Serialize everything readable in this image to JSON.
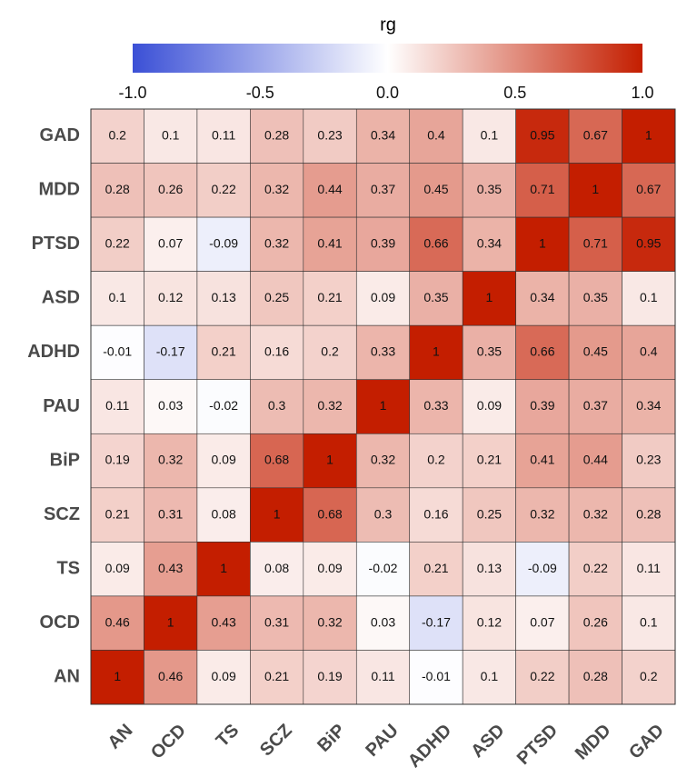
{
  "chart_data": {
    "type": "heatmap",
    "colorbar_title": "rg",
    "clim": [
      -1,
      1
    ],
    "colormap": [
      "#3b50d6",
      "#ffffff",
      "#c41e00"
    ],
    "cticks": [
      {
        "value": -1,
        "label": "-1.0"
      },
      -0.5,
      {
        "value": 0,
        "label": "0.0"
      },
      0.5,
      {
        "value": 1,
        "label": "1.0"
      }
    ],
    "x_categories": [
      "AN",
      "OCD",
      "TS",
      "SCZ",
      "BiP",
      "PAU",
      "ADHD",
      "ASD",
      "PTSD",
      "MDD",
      "GAD"
    ],
    "y_categories": [
      "GAD",
      "MDD",
      "PTSD",
      "ASD",
      "ADHD",
      "PAU",
      "BiP",
      "SCZ",
      "TS",
      "OCD",
      "AN"
    ],
    "values": [
      [
        0.2,
        0.1,
        0.11,
        0.28,
        0.23,
        0.34,
        0.4,
        0.1,
        0.95,
        0.67,
        1
      ],
      [
        0.28,
        0.26,
        0.22,
        0.32,
        0.44,
        0.37,
        0.45,
        0.35,
        0.71,
        1,
        0.67
      ],
      [
        0.22,
        0.07,
        -0.09,
        0.32,
        0.41,
        0.39,
        0.66,
        0.34,
        1,
        0.71,
        0.95
      ],
      [
        0.1,
        0.12,
        0.13,
        0.25,
        0.21,
        0.09,
        0.35,
        1,
        0.34,
        0.35,
        0.1
      ],
      [
        -0.01,
        -0.17,
        0.21,
        0.16,
        0.2,
        0.33,
        1,
        0.35,
        0.66,
        0.45,
        0.4
      ],
      [
        0.11,
        0.03,
        -0.02,
        0.3,
        0.32,
        1,
        0.33,
        0.09,
        0.39,
        0.37,
        0.34
      ],
      [
        0.19,
        0.32,
        0.09,
        0.68,
        1,
        0.32,
        0.2,
        0.21,
        0.41,
        0.44,
        0.23
      ],
      [
        0.21,
        0.31,
        0.08,
        1,
        0.68,
        0.3,
        0.16,
        0.25,
        0.32,
        0.32,
        0.28
      ],
      [
        0.09,
        0.43,
        1,
        0.08,
        0.09,
        -0.02,
        0.21,
        0.13,
        -0.09,
        0.22,
        0.11
      ],
      [
        0.46,
        1,
        0.43,
        0.31,
        0.32,
        0.03,
        -0.17,
        0.12,
        0.07,
        0.26,
        0.1
      ],
      [
        1,
        0.46,
        0.09,
        0.21,
        0.19,
        0.11,
        -0.01,
        0.1,
        0.22,
        0.28,
        0.2
      ]
    ]
  }
}
